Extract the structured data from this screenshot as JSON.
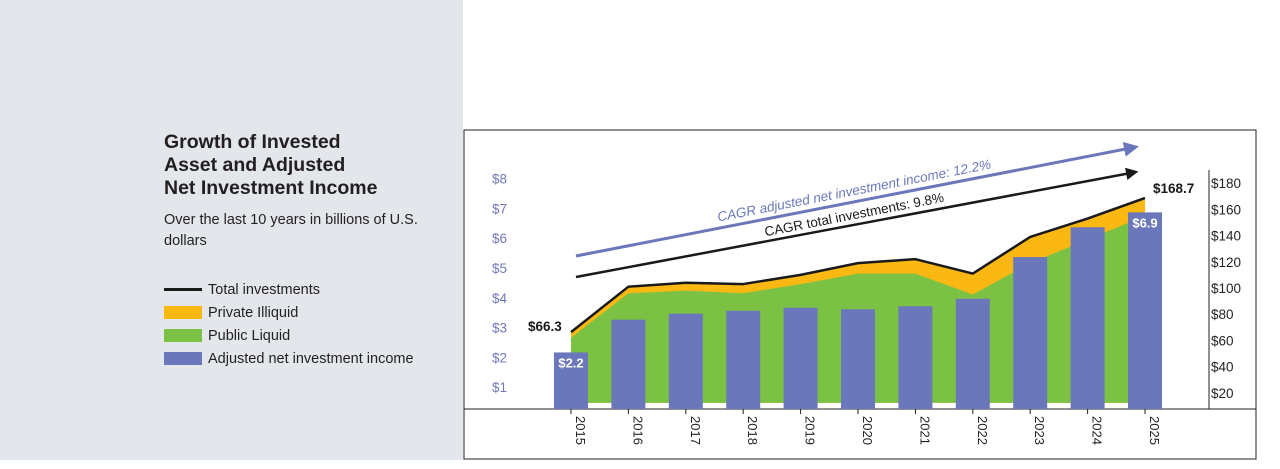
{
  "title_lines": [
    "Growth of Invested",
    "Asset and Adjusted",
    "Net Investment Income"
  ],
  "subtitle": "Over the last 10 years in billions of U.S. dollars",
  "legend": [
    {
      "label": "Total investments",
      "kind": "line",
      "color": "#1a1a1a"
    },
    {
      "label": "Private Illiquid",
      "kind": "box",
      "color": "#fbb813"
    },
    {
      "label": "Public Liquid",
      "kind": "box",
      "color": "#7bc143"
    },
    {
      "label": "Adjusted net investment income",
      "kind": "box",
      "color": "#6b77bb"
    }
  ],
  "annotations": {
    "start_total": "$66.3",
    "end_total": "$168.7",
    "cagr_income": "CAGR adjusted net investment income: 12.2%",
    "cagr_total": "CAGR total investments: 9.8%"
  },
  "chart_data": {
    "type": "bar",
    "categories": [
      "2015",
      "2016",
      "2017",
      "2018",
      "2019",
      "2020",
      "2021",
      "2022",
      "2023",
      "2024",
      "2025"
    ],
    "series": [
      {
        "name": "Adjusted net investment income",
        "axis": "left",
        "type": "bar",
        "color": "#6b77bb",
        "values": [
          2.2,
          3.3,
          3.5,
          3.6,
          3.7,
          3.65,
          3.75,
          4.0,
          5.4,
          6.4,
          6.9
        ],
        "data_labels": {
          "0": "$2.2",
          "10": "$6.9"
        }
      },
      {
        "name": "Total investments",
        "axis": "right",
        "type": "line",
        "color": "#1a1a1a",
        "values": [
          66.3,
          101,
          104,
          103,
          110,
          119,
          122,
          111,
          139,
          153,
          168.7
        ]
      },
      {
        "name": "Public Liquid",
        "axis": "right",
        "type": "area",
        "color": "#7bc143",
        "values": [
          62,
          96,
          98,
          96,
          103,
          111,
          111,
          95,
          119,
          137,
          155
        ]
      },
      {
        "name": "Private Illiquid",
        "axis": "right",
        "type": "area",
        "color": "#fbb813",
        "values": [
          4.3,
          5,
          6,
          7,
          7,
          8,
          11,
          16,
          20,
          16,
          13.7
        ]
      }
    ],
    "left_axis": {
      "ticks": [
        "$1",
        "$2",
        "$3",
        "$4",
        "$5",
        "$6",
        "$7",
        "$8"
      ],
      "values": [
        1,
        2,
        3,
        4,
        5,
        6,
        7,
        8
      ],
      "range": [
        0.5,
        8.5
      ]
    },
    "right_axis": {
      "ticks": [
        "$20",
        "$40",
        "$60",
        "$80",
        "$100",
        "$120",
        "$140",
        "$160",
        "$180"
      ],
      "values": [
        20,
        40,
        60,
        80,
        100,
        120,
        140,
        160,
        180
      ],
      "range": [
        10,
        190
      ]
    },
    "trend_arrows": [
      {
        "label_key": "cagr_income",
        "color": "#6b77bb"
      },
      {
        "label_key": "cagr_total",
        "color": "#1a1a1a"
      }
    ],
    "grid": false,
    "legend_position": "left"
  }
}
